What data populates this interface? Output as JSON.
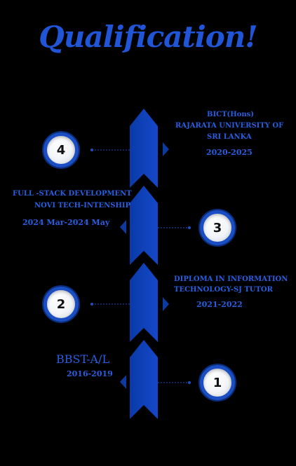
{
  "title": "Qualification!",
  "accent_color": "#1f55d6",
  "items": [
    {
      "number": "4",
      "lines": [
        "BICT(Hons)",
        "RAJARATA UNIVERSITY OF",
        "SRI LANKA"
      ],
      "period": "2020-2025"
    },
    {
      "number": "3",
      "lines": [
        "FULL -STACK DEVELOPMENT",
        "NOVI TECH-INTENSHIP"
      ],
      "period": "2024 Mar-2024 May"
    },
    {
      "number": "2",
      "lines": [
        "DIPLOMA IN  INFORMATION",
        "TECHNOLOGY-SJ TUTOR"
      ],
      "period": "2021-2022"
    },
    {
      "number": "1",
      "lines": [
        "BBST-A/L"
      ],
      "period": "2016-2019"
    }
  ]
}
